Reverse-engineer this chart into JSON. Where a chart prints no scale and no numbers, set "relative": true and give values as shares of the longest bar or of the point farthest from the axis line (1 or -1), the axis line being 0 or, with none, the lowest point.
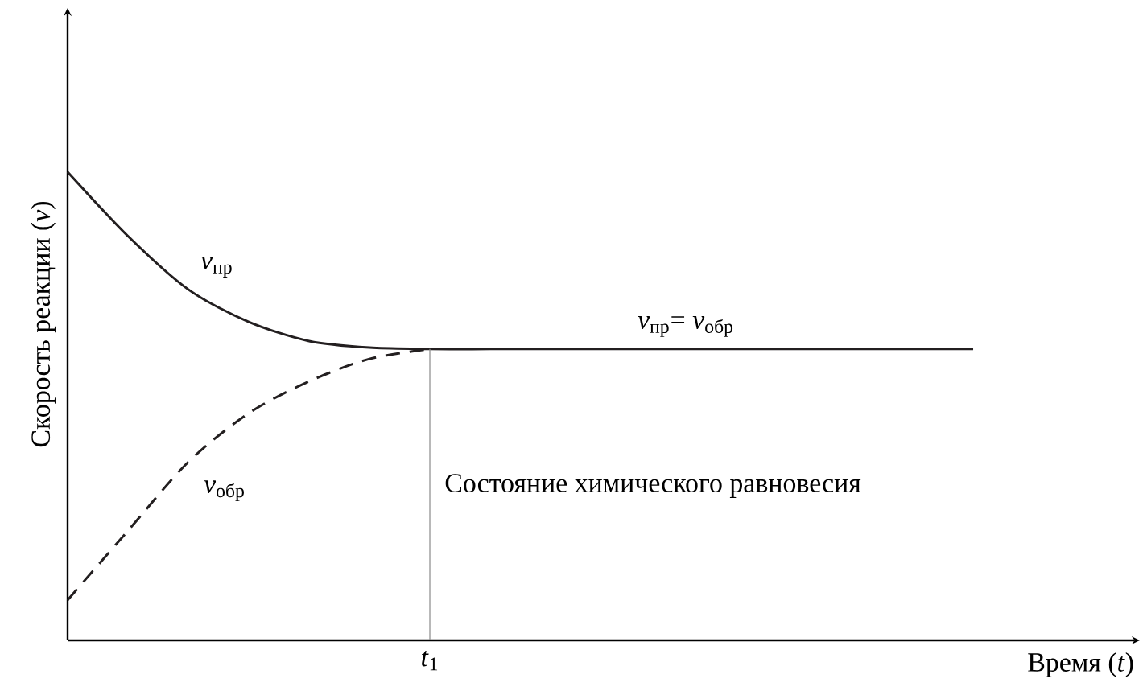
{
  "chart_data": {
    "type": "line",
    "relative": true,
    "xlabel": "Время (*t*)",
    "ylabel": "Скорость реакции (*v*)",
    "categories": [
      null,
      null,
      null,
      null,
      null,
      null,
      null,
      null,
      null,
      null,
      null,
      null,
      null,
      null,
      null,
      null
    ],
    "series": [
      {
        "name": "*v*$_{пр}$",
        "color": "#231f20",
        "line_style": "solid",
        "values": [
          1.0,
          0.863,
          0.749,
          0.68,
          0.639,
          0.625,
          0.622,
          0.622,
          0.622,
          0.622,
          0.622,
          0.622,
          0.622,
          0.622,
          0.622,
          0.622
        ]
      },
      {
        "name": "*v*$_{обр}$",
        "color": "#231f20",
        "line_style": "dashed",
        "values": [
          0.086,
          0.234,
          0.381,
          0.485,
          0.553,
          0.601,
          0.622,
          null,
          null,
          null,
          null,
          null,
          null,
          null,
          null,
          null
        ]
      }
    ],
    "annotations": [
      "*v*$_{пр}$= *v*$_{обр}$",
      "Состояние химического равновесия",
      "*t*$_{1}$"
    ]
  }
}
